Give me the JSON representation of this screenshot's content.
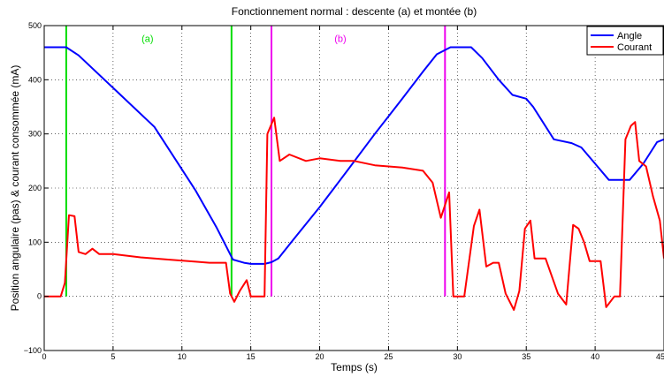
{
  "chart_data": {
    "type": "line",
    "title": "Fonctionnement normal : descente (a) et montée (b)",
    "xlabel": "Temps (s)",
    "ylabel": "Position angulaire (pas) & courant consommée (mA)",
    "xlim": [
      0,
      45
    ],
    "ylim": [
      -100,
      500
    ],
    "grid": true,
    "legend": {
      "position": "top-right"
    },
    "x_ticks": [
      0,
      5,
      10,
      15,
      20,
      25,
      30,
      35,
      40,
      45
    ],
    "x_tick_labels": [
      "0",
      "5",
      "10",
      "15",
      "20",
      "25",
      "30",
      "35",
      "40",
      "45"
    ],
    "y_ticks": [
      -100,
      0,
      100,
      200,
      300,
      400,
      500
    ],
    "y_tick_labels": [
      "−100",
      "0",
      "100",
      "200",
      "300",
      "400",
      "500"
    ],
    "annotations": [
      {
        "text": "(a)",
        "x": 7.5,
        "y": 470,
        "color": "#00dd00"
      },
      {
        "text": "(b)",
        "x": 21.5,
        "y": 470,
        "color": "#ee00ee"
      }
    ],
    "vlines": [
      {
        "x": 1.6,
        "color": "#00dd00"
      },
      {
        "x": 13.6,
        "color": "#00dd00"
      },
      {
        "x": 16.5,
        "color": "#ee00ee"
      },
      {
        "x": 29.1,
        "color": "#ee00ee"
      }
    ],
    "series": [
      {
        "name": "Angle",
        "color": "#0000ff",
        "points": [
          [
            0,
            460
          ],
          [
            1.6,
            460
          ],
          [
            2.5,
            445
          ],
          [
            5,
            385
          ],
          [
            8,
            313
          ],
          [
            11,
            195
          ],
          [
            12.5,
            128
          ],
          [
            13,
            103
          ],
          [
            13.7,
            68
          ],
          [
            14.5,
            62
          ],
          [
            15,
            60
          ],
          [
            16,
            60
          ],
          [
            16.5,
            63
          ],
          [
            17,
            70
          ],
          [
            18,
            102
          ],
          [
            20,
            165
          ],
          [
            22,
            232
          ],
          [
            24,
            300
          ],
          [
            26,
            365
          ],
          [
            27.5,
            415
          ],
          [
            28.5,
            447
          ],
          [
            29.5,
            460
          ],
          [
            31,
            460
          ],
          [
            31.8,
            440
          ],
          [
            33,
            400
          ],
          [
            34,
            372
          ],
          [
            35,
            365
          ],
          [
            35.5,
            350
          ],
          [
            37,
            290
          ],
          [
            38.3,
            283
          ],
          [
            39,
            275
          ],
          [
            40,
            245
          ],
          [
            41,
            215
          ],
          [
            42.5,
            215
          ],
          [
            43.5,
            245
          ],
          [
            44.5,
            285
          ],
          [
            45,
            290
          ]
        ]
      },
      {
        "name": "Courant",
        "color": "#ff0000",
        "points": [
          [
            0,
            0
          ],
          [
            1.2,
            0
          ],
          [
            1.5,
            25
          ],
          [
            1.8,
            150
          ],
          [
            2.2,
            148
          ],
          [
            2.5,
            82
          ],
          [
            3,
            78
          ],
          [
            3.5,
            88
          ],
          [
            4,
            78
          ],
          [
            5,
            78
          ],
          [
            7,
            72
          ],
          [
            9,
            68
          ],
          [
            11,
            64
          ],
          [
            12,
            62
          ],
          [
            13.2,
            62
          ],
          [
            13.5,
            5
          ],
          [
            13.8,
            -10
          ],
          [
            14.2,
            10
          ],
          [
            14.7,
            30
          ],
          [
            15,
            0
          ],
          [
            16,
            0
          ],
          [
            16.2,
            300
          ],
          [
            16.7,
            330
          ],
          [
            17.1,
            250
          ],
          [
            17.8,
            262
          ],
          [
            19,
            250
          ],
          [
            20,
            255
          ],
          [
            21.5,
            250
          ],
          [
            22.5,
            250
          ],
          [
            24,
            242
          ],
          [
            26,
            238
          ],
          [
            27.5,
            232
          ],
          [
            28.2,
            210
          ],
          [
            28.8,
            145
          ],
          [
            29.4,
            192
          ],
          [
            29.7,
            0
          ],
          [
            30.5,
            0
          ],
          [
            31.2,
            130
          ],
          [
            31.6,
            160
          ],
          [
            32.1,
            55
          ],
          [
            32.6,
            62
          ],
          [
            33,
            62
          ],
          [
            33.5,
            5
          ],
          [
            34.1,
            -25
          ],
          [
            34.5,
            10
          ],
          [
            34.9,
            125
          ],
          [
            35.3,
            140
          ],
          [
            35.6,
            70
          ],
          [
            36.4,
            70
          ],
          [
            37.3,
            5
          ],
          [
            37.9,
            -15
          ],
          [
            38.4,
            132
          ],
          [
            38.8,
            125
          ],
          [
            39.2,
            100
          ],
          [
            39.6,
            65
          ],
          [
            40.4,
            65
          ],
          [
            40.8,
            -20
          ],
          [
            41.4,
            0
          ],
          [
            41.8,
            0
          ],
          [
            42.2,
            290
          ],
          [
            42.6,
            315
          ],
          [
            42.9,
            322
          ],
          [
            43.2,
            250
          ],
          [
            43.7,
            240
          ],
          [
            44.2,
            185
          ],
          [
            44.7,
            140
          ],
          [
            45,
            70
          ]
        ]
      }
    ]
  }
}
